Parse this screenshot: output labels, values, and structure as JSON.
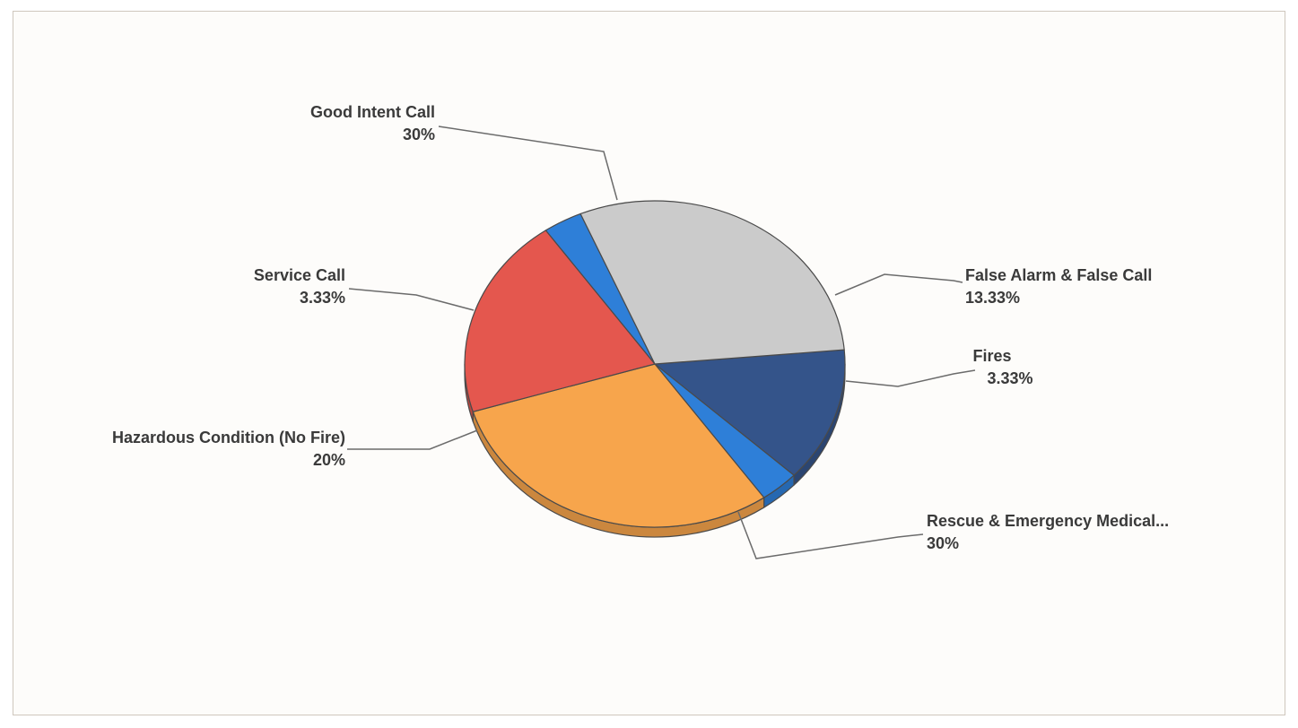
{
  "chart_data": {
    "type": "pie",
    "title": "",
    "categories": [
      "False Alarm & False Call",
      "Fires",
      "Rescue & Emergency Medical...",
      "Hazardous Condition (No Fire)",
      "Service Call",
      "Good Intent Call"
    ],
    "values": [
      13.33,
      3.33,
      30,
      20,
      3.33,
      30
    ],
    "value_labels": [
      "13.33%",
      "3.33%",
      "30%",
      "20%",
      "3.33%",
      "30%"
    ],
    "colors": [
      "#34548a",
      "#2e7fd8",
      "#f7a54c",
      "#e4574e",
      "#2e7fd8",
      "#cbcbcb"
    ],
    "legend": "none",
    "labels_outside": true,
    "style": "3d"
  }
}
